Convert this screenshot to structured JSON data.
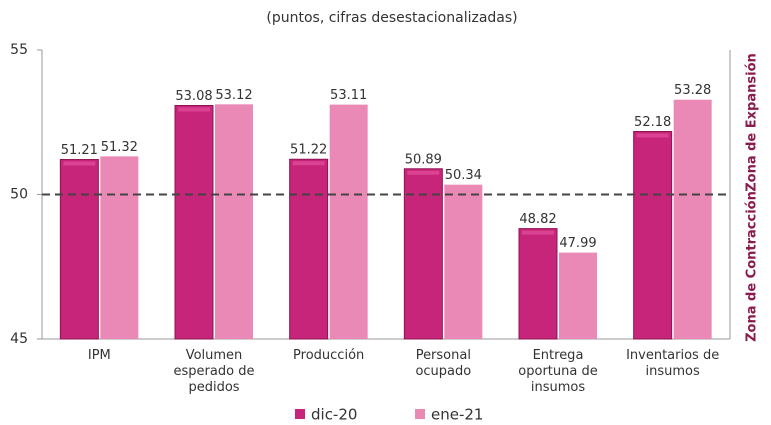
{
  "chart_data": {
    "type": "bar",
    "title": "(puntos, cifras desestacionalizadas)",
    "categories": [
      "IPM",
      "Volumen\nesperado de\npedidos",
      "Producción",
      "Personal\nocupado",
      "Entrega\noportuna de\ninsumos",
      "Inventarios de\ninsumos"
    ],
    "series": [
      {
        "name": "dic-20",
        "color": "#c72579",
        "values": [
          51.21,
          53.08,
          51.22,
          50.89,
          48.82,
          52.18
        ]
      },
      {
        "name": "ene-21",
        "color": "#ea88b6",
        "values": [
          51.32,
          53.12,
          53.11,
          50.34,
          47.99,
          53.28
        ]
      }
    ],
    "ylim": [
      45,
      55
    ],
    "yticks": [
      45,
      50,
      55
    ],
    "threshold": 50,
    "zone_labels": [
      "Zona de Expansión",
      "Zona de Contracción"
    ]
  }
}
